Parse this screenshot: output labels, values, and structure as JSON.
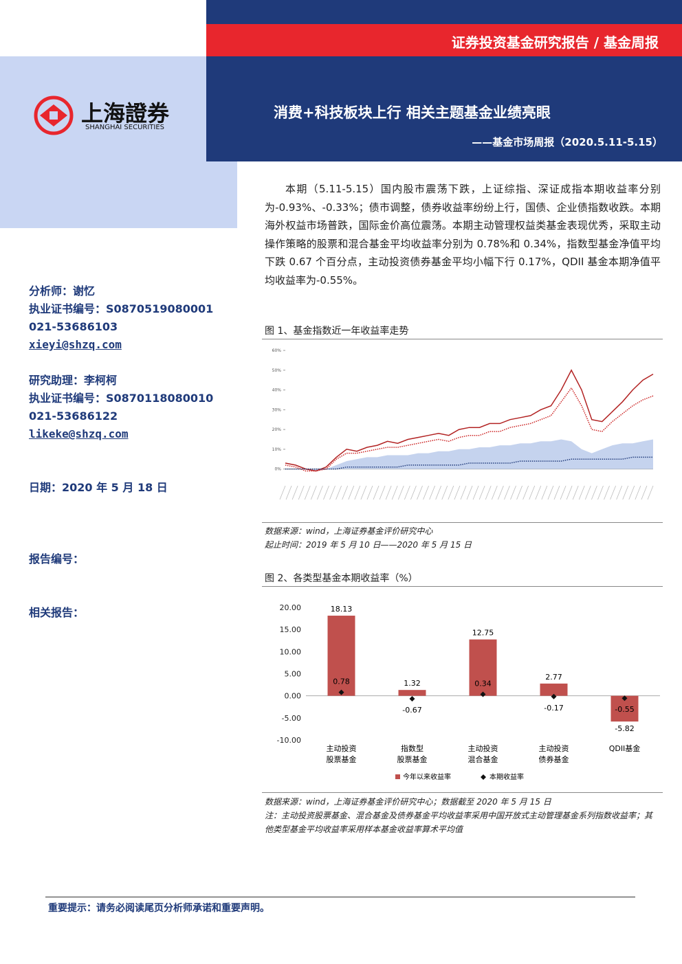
{
  "header": {
    "category": "证券投资基金研究报告 / 基金周报",
    "title": "消费+科技板块上行 相关主题基金业绩亮眼",
    "subtitle": "——基金市场周报（2020.5.11-5.15）",
    "logo_cn": "上海證券",
    "logo_en": "SHANGHAI SECURITIES"
  },
  "sidebar": {
    "analyst": "分析师：谢忆",
    "analyst_cert": "执业证书编号：S0870519080001",
    "analyst_phone": "021-53686103",
    "analyst_email": "xieyi@shzq.com",
    "assistant": "研究助理：李柯柯",
    "assistant_cert": "执业证书编号：S0870118080010",
    "assistant_phone": "021-53686122",
    "assistant_email": "likeke@shzq.com",
    "date": "日期：2020 年 5 月 18 日",
    "report_no": "报告编号：",
    "related": "相关报告："
  },
  "body": {
    "paragraph": "本期（5.11-5.15）国内股市震荡下跌，上证综指、深证成指本期收益率分别为-0.93%、-0.33%；债市调整，债券收益率纷纷上行，国债、企业债指数收跌。本期海外权益市场普跌，国际金价高位震荡。本期主动管理权益类基金表现优秀，采取主动操作策略的股票和混合基金平均收益率分别为 0.78%和 0.34%，指数型基金净值平均下跌 0.67 个百分点，主动投资债券基金平均小幅下行 0.17%，QDII 基金本期净值平均收益率为-0.55%。"
  },
  "chart_data": [
    {
      "type": "line",
      "title": "图 1、基金指数近一年收益率走势",
      "source": "数据来源：wind，上海证券基金评价研究中心",
      "period": "起止时间：2019 年 5 月 10 日——2020 年 5 月 15 日",
      "ylim": [
        -5,
        60
      ],
      "yticks": [
        {
          "value": 0,
          "label": "0%"
        },
        {
          "value": 10,
          "label": "10%"
        },
        {
          "value": 20,
          "label": "20%"
        },
        {
          "value": 30,
          "label": "30%"
        },
        {
          "value": 40,
          "label": "40%"
        },
        {
          "value": 50,
          "label": "50%"
        },
        {
          "value": 60,
          "label": "60%"
        }
      ],
      "series": [
        {
          "color": "#c5d3ee",
          "style": "area",
          "values": [
            0,
            0,
            0,
            -1,
            0,
            2,
            4,
            5,
            6,
            6,
            7,
            7,
            7,
            8,
            8,
            9,
            9,
            10,
            10,
            11,
            11,
            12,
            12,
            13,
            13,
            14,
            14,
            15,
            14,
            10,
            8,
            10,
            12,
            13,
            13,
            14,
            15
          ]
        },
        {
          "color": "#b22222",
          "style": "solid",
          "values": [
            3,
            2,
            0,
            -1,
            1,
            6,
            10,
            9,
            11,
            12,
            14,
            13,
            15,
            16,
            17,
            18,
            17,
            20,
            21,
            21,
            23,
            23,
            25,
            26,
            27,
            30,
            32,
            40,
            50,
            40,
            25,
            24,
            29,
            34,
            40,
            45,
            48
          ]
        },
        {
          "color": "#cc2222",
          "style": "dotted",
          "values": [
            2,
            1,
            -1,
            -1,
            0,
            5,
            8,
            8,
            9,
            10,
            11,
            11,
            12,
            13,
            14,
            15,
            14,
            16,
            17,
            17,
            19,
            19,
            21,
            22,
            23,
            25,
            27,
            34,
            41,
            32,
            20,
            19,
            24,
            28,
            32,
            35,
            37
          ]
        },
        {
          "color": "#1f3a7a",
          "style": "dotted",
          "values": [
            0,
            0,
            0,
            0,
            0,
            0,
            1,
            1,
            1,
            1,
            1,
            1,
            2,
            2,
            2,
            2,
            2,
            2,
            3,
            3,
            3,
            3,
            3,
            4,
            4,
            4,
            4,
            4,
            5,
            5,
            5,
            5,
            5,
            5,
            6,
            6,
            6
          ]
        }
      ]
    },
    {
      "type": "bar",
      "title": "图 2、各类型基金本期收益率（%）",
      "source": "数据来源：wind，上海证券基金评价研究中心；数据截至 2020 年 5 月 15 日",
      "note": "注：主动投资股票基金、混合基金及债券基金平均收益率采用中国开放式主动管理基金系列指数收益率；其他类型基金平均收益率采用样本基金收益率算术平均值",
      "categories": [
        [
          "主动投资",
          "股票基金"
        ],
        [
          "指数型",
          "股票基金"
        ],
        [
          "主动投资",
          "混合基金"
        ],
        [
          "主动投资",
          "债券基金"
        ],
        [
          "QDII基金"
        ]
      ],
      "ylim": [
        -10,
        20
      ],
      "yticks": [
        {
          "value": -10,
          "label": "-10.00"
        },
        {
          "value": -5,
          "label": "-5.00"
        },
        {
          "value": 0,
          "label": "0.00"
        },
        {
          "value": 5,
          "label": "5.00"
        },
        {
          "value": 10,
          "label": "10.00"
        },
        {
          "value": 15,
          "label": "15.00"
        },
        {
          "value": 20,
          "label": "20.00"
        }
      ],
      "series": [
        {
          "name": "今年以来收益率",
          "color": "#c0504d",
          "values": [
            18.13,
            1.32,
            12.75,
            2.77,
            -5.82
          ]
        },
        {
          "name": "本期收益率",
          "color": "#111111",
          "values": [
            0.78,
            -0.67,
            0.34,
            -0.17,
            -0.55
          ]
        }
      ]
    }
  ],
  "footer": {
    "notice": "重要提示：请务必阅读尾页分析师承诺和重要声明。"
  }
}
